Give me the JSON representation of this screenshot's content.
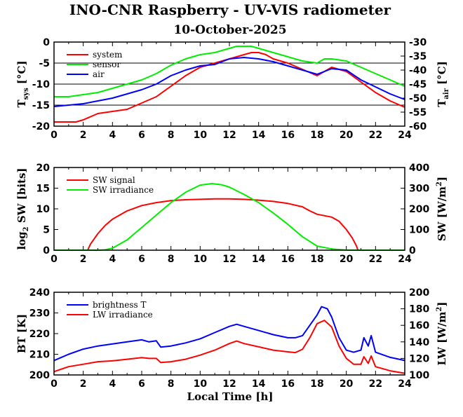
{
  "figure": {
    "title": "INO-CNR Raspberry - UV-VIS radiometer",
    "subtitle": "10-October-2025",
    "xlabel": "Local Time [h]"
  },
  "chart_data": [
    {
      "type": "line",
      "panel": "temperature",
      "xlim": [
        0,
        24
      ],
      "x_ticks": [
        "0",
        "2",
        "4",
        "6",
        "8",
        "10",
        "12",
        "14",
        "16",
        "18",
        "20",
        "22",
        "24"
      ],
      "ylim": [
        -20,
        0
      ],
      "y_ticks": [
        "0",
        "-5",
        "-10",
        "-15",
        "-20"
      ],
      "ylabel_main": "T",
      "ylabel_sub": "sys",
      "ylabel_unit": " [°C]",
      "y2lim": [
        -60,
        -30
      ],
      "y2_ticks": [
        "-30",
        "-35",
        "-40",
        "-45",
        "-50",
        "-55",
        "-60"
      ],
      "y2label_main": "T",
      "y2label_sub": "air",
      "y2label_unit": " [°C]",
      "legend": [
        "system",
        "sensor",
        "air"
      ],
      "series": [
        {
          "name": "system",
          "axis": "left",
          "color": "#ff0000",
          "x": [
            0,
            1,
            1.5,
            2,
            3,
            4,
            5,
            6,
            7,
            8,
            9,
            10,
            11,
            12,
            12.5,
            13,
            13.5,
            14,
            14.5,
            15,
            16,
            17,
            18,
            18.5,
            19,
            20,
            21,
            22,
            23,
            24
          ],
          "y": [
            -19,
            -19,
            -19,
            -18.5,
            -17,
            -16.5,
            -16,
            -14.5,
            -13,
            -10.5,
            -8,
            -6,
            -5,
            -4,
            -3.5,
            -3,
            -2.5,
            -2.5,
            -3,
            -4,
            -5,
            -6.5,
            -8,
            -7,
            -6,
            -7,
            -9.5,
            -12,
            -14,
            -15.5
          ]
        },
        {
          "name": "sensor",
          "axis": "left",
          "color": "#00ee00",
          "x": [
            0,
            1,
            2,
            3,
            4,
            5,
            6,
            7,
            8,
            9,
            10,
            11,
            12,
            12.5,
            13,
            13.5,
            14,
            14.5,
            15,
            16,
            17,
            18,
            18.5,
            19,
            20,
            21,
            22,
            23,
            24
          ],
          "y": [
            -13,
            -13,
            -12.5,
            -12,
            -11,
            -10,
            -9,
            -7.5,
            -5.5,
            -4,
            -3,
            -2.5,
            -1.5,
            -1,
            -1,
            -1,
            -1.5,
            -2,
            -2.5,
            -3.5,
            -4.5,
            -5,
            -4,
            -4,
            -4.5,
            -6,
            -7.5,
            -9,
            -10.5
          ]
        },
        {
          "name": "air",
          "axis": "right",
          "color": "#0000ff",
          "x": [
            0,
            1,
            2,
            3,
            4,
            5,
            6,
            7,
            8,
            9,
            10,
            11,
            12,
            13,
            14,
            15,
            16,
            17,
            18,
            19,
            20,
            21,
            22,
            23,
            24
          ],
          "y": [
            -53,
            -52.5,
            -52,
            -51,
            -50,
            -48.5,
            -47,
            -45,
            -42,
            -40,
            -38.5,
            -38,
            -36,
            -35.5,
            -36,
            -37,
            -38.5,
            -40,
            -41.5,
            -39.5,
            -40,
            -43.5,
            -46,
            -48.5,
            -50.5
          ]
        }
      ]
    },
    {
      "type": "line",
      "panel": "shortwave",
      "xlim": [
        0,
        24
      ],
      "x_ticks": [
        "0",
        "2",
        "4",
        "6",
        "8",
        "10",
        "12",
        "14",
        "16",
        "18",
        "20",
        "22",
        "24"
      ],
      "ylim": [
        0,
        20
      ],
      "y_ticks": [
        "20",
        "15",
        "10",
        "5",
        "0"
      ],
      "ylabel_main": "log",
      "ylabel_sub": "2",
      "ylabel_unit": " SW [bits]",
      "y2lim": [
        0,
        400
      ],
      "y2_ticks": [
        "400",
        "300",
        "200",
        "100",
        "0"
      ],
      "y2label_main": "SW [W/m",
      "y2label_sup": "2",
      "y2label_unit": "]",
      "legend": [
        "SW signal",
        "SW irradiance"
      ],
      "series": [
        {
          "name": "SW signal",
          "axis": "left",
          "color": "#ff0000",
          "x": [
            0,
            2.3,
            2.5,
            3,
            3.5,
            4,
            5,
            6,
            7,
            8,
            9,
            10,
            11,
            12,
            13,
            14,
            15,
            16,
            17,
            17.5,
            18,
            19,
            19.5,
            20,
            20.4,
            20.7,
            20.8,
            24
          ],
          "y": [
            0,
            0,
            1.5,
            4,
            6,
            7.5,
            9.5,
            10.8,
            11.5,
            12,
            12.2,
            12.3,
            12.4,
            12.4,
            12.3,
            12.1,
            11.8,
            11.3,
            10.5,
            9.5,
            8.7,
            8,
            7,
            5,
            3,
            1,
            0,
            0
          ]
        },
        {
          "name": "SW irradiance",
          "axis": "right",
          "color": "#00ee00",
          "x": [
            0,
            3,
            3.5,
            4,
            5,
            6,
            7,
            8,
            9,
            10,
            10.8,
            11.5,
            12,
            13,
            14,
            15,
            16,
            17,
            18,
            19,
            20,
            21,
            24
          ],
          "y": [
            0,
            0,
            2,
            10,
            50,
            110,
            170,
            230,
            280,
            315,
            322,
            316,
            305,
            270,
            230,
            180,
            125,
            65,
            20,
            6,
            1,
            0,
            0
          ]
        }
      ]
    },
    {
      "type": "line",
      "panel": "longwave",
      "xlim": [
        0,
        24
      ],
      "x_ticks": [
        "0",
        "2",
        "4",
        "6",
        "8",
        "10",
        "12",
        "14",
        "16",
        "18",
        "20",
        "22",
        "24"
      ],
      "ylim": [
        200,
        240
      ],
      "y_ticks": [
        "240",
        "230",
        "220",
        "210",
        "200"
      ],
      "ylabel_main": "BT [K]",
      "y2lim": [
        100,
        200
      ],
      "y2_ticks": [
        "200",
        "180",
        "160",
        "140",
        "120",
        "100"
      ],
      "y2label_main": "LW [W/m",
      "y2label_sup": "2",
      "y2label_unit": "]",
      "legend": [
        "brightness T",
        "LW irradiance"
      ],
      "series": [
        {
          "name": "brightness T",
          "axis": "left",
          "color": "#0000ff",
          "x": [
            0,
            1,
            2,
            3,
            4,
            5,
            6,
            6.5,
            7,
            7.3,
            8,
            9,
            10,
            11,
            12,
            12.5,
            13,
            14,
            15,
            16,
            16.5,
            17,
            17.5,
            18,
            18.3,
            18.7,
            19,
            19.5,
            20,
            20.5,
            21,
            21.2,
            21.5,
            21.7,
            22,
            23,
            24
          ],
          "y": [
            207,
            210,
            212.5,
            214,
            215,
            216,
            217,
            216,
            216.5,
            213.5,
            214,
            215.5,
            217.5,
            220.5,
            223.5,
            224.5,
            223.5,
            221.5,
            219.5,
            218,
            218,
            219,
            224,
            229,
            233,
            232,
            228,
            218,
            212,
            211,
            212,
            218,
            214,
            219,
            211,
            208.5,
            207
          ]
        },
        {
          "name": "LW irradiance",
          "axis": "right",
          "color": "#ff0000",
          "x": [
            0,
            0.5,
            1,
            2,
            3,
            4,
            5,
            6,
            6.5,
            7,
            7.3,
            8,
            9,
            10,
            11,
            12,
            12.5,
            13,
            14,
            15,
            16,
            16.5,
            17,
            17.5,
            18,
            18.5,
            19,
            19.5,
            20,
            20.5,
            21,
            21.2,
            21.5,
            21.7,
            22,
            23,
            24
          ],
          "y": [
            104,
            107,
            110,
            113,
            116,
            117,
            119,
            121,
            120,
            120,
            115,
            116,
            119,
            124,
            130,
            138,
            141,
            138,
            134,
            130,
            128,
            127,
            131,
            145,
            162,
            166,
            158,
            135,
            120,
            113,
            113,
            122,
            114,
            123,
            110,
            105,
            102
          ]
        }
      ]
    }
  ]
}
